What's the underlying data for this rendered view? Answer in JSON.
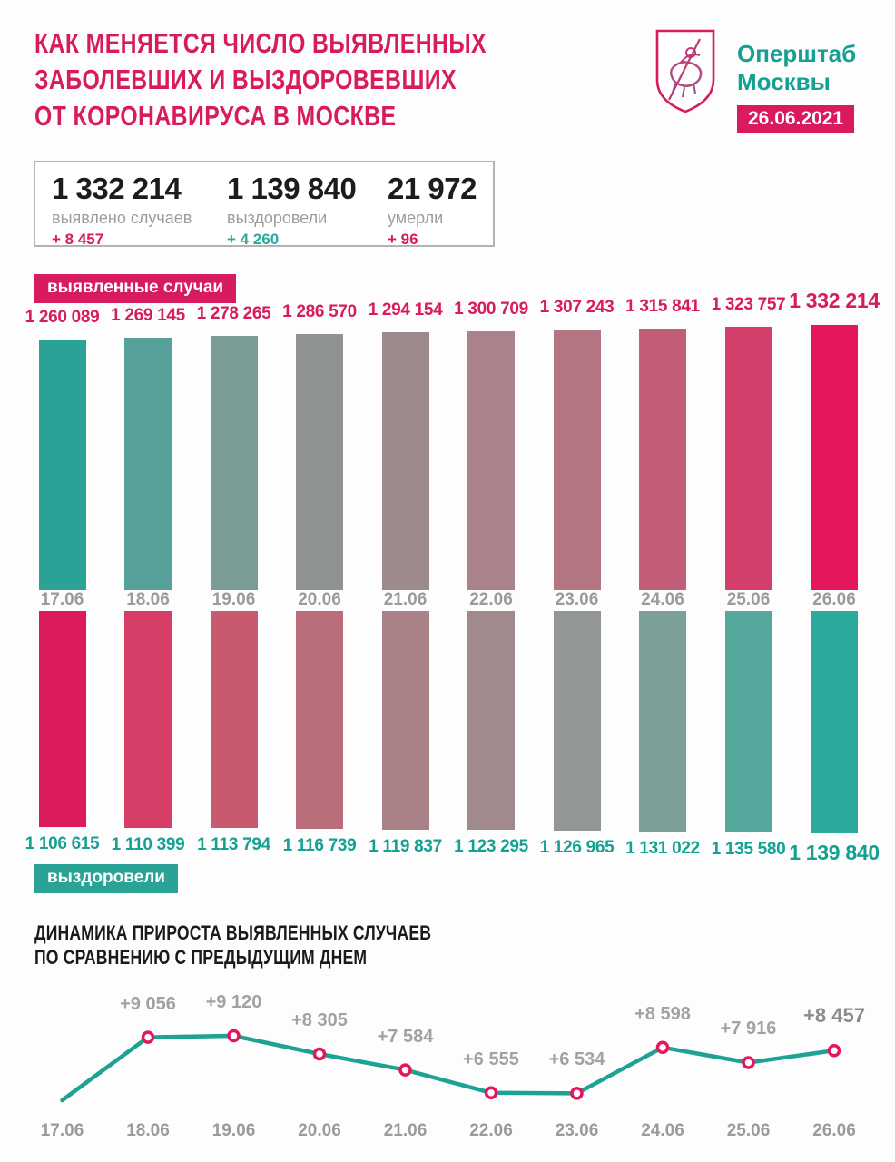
{
  "colors": {
    "pink": "#d81b5e",
    "pink_bright": "#e5175c",
    "teal": "#14a192",
    "teal_badge": "#2aa396",
    "line_teal": "#1ea294",
    "gray_text": "#9b9b9b",
    "dark": "#1c1c1c",
    "box_border": "#b3b3b3"
  },
  "icons": {
    "logo": "moscow-coat-of-arms"
  },
  "header": {
    "title_lines": [
      "КАК МЕНЯЕТСЯ ЧИСЛО ВЫЯВЛЕННЫХ",
      "ЗАБОЛЕВШИХ И ВЫЗДОРОВЕВШИХ",
      "ОТ КОРОНАВИРУСА В МОСКВЕ"
    ],
    "org_lines": [
      "Оперштаб",
      "Москвы"
    ],
    "date_badge": "26.06.2021"
  },
  "summary": {
    "items": [
      {
        "value": "1 332 214",
        "label": "выявлено случаев",
        "delta": "+ 8 457",
        "delta_color": "#d81b5e"
      },
      {
        "value": "1 139 840",
        "label": "выздоровели",
        "delta": "+ 4 260",
        "delta_color": "#2aa99b"
      },
      {
        "value": "21 972",
        "label": "умерли",
        "delta": "+ 96",
        "delta_color": "#d81b5e"
      }
    ]
  },
  "chart_data": [
    {
      "type": "bar",
      "name": "confirmed-cases",
      "badge": "выявленные случаи",
      "categories": [
        "17.06",
        "18.06",
        "19.06",
        "20.06",
        "21.06",
        "22.06",
        "23.06",
        "24.06",
        "25.06",
        "26.06"
      ],
      "values": [
        1260089,
        1269145,
        1278265,
        1286570,
        1294154,
        1300709,
        1307243,
        1315841,
        1323757,
        1332214
      ],
      "labels": [
        "1 260 089",
        "1 269 145",
        "1 278 265",
        "1 286 570",
        "1 294 154",
        "1 300 709",
        "1 307 243",
        "1 315 841",
        "1 323 757",
        "1 332 214"
      ],
      "bar_colors": [
        "#2aa296",
        "#55a098",
        "#7b9d95",
        "#8f9390",
        "#9d8b8c",
        "#a98389",
        "#b47583",
        "#c25e77",
        "#d33e6b",
        "#e5175c"
      ],
      "label_color": "#d81b5e",
      "ylim": [
        0,
        1332214
      ],
      "orientation": "up",
      "grid": false
    },
    {
      "type": "bar",
      "name": "recovered",
      "badge": "выздоровели",
      "categories": [
        "17.06",
        "18.06",
        "19.06",
        "20.06",
        "21.06",
        "22.06",
        "23.06",
        "24.06",
        "25.06",
        "26.06"
      ],
      "values": [
        1106615,
        1110399,
        1113794,
        1116739,
        1119837,
        1123295,
        1126965,
        1131022,
        1135580,
        1139840
      ],
      "labels": [
        "1 106 615",
        "1 110 399",
        "1 113 794",
        "1 116 739",
        "1 119 837",
        "1 123 295",
        "1 126 965",
        "1 131 022",
        "1 135 580",
        "1 139 840"
      ],
      "bar_colors": [
        "#dc1b5f",
        "#d63e67",
        "#c8596f",
        "#ba6e7a",
        "#ab8188",
        "#a18a8c",
        "#929794",
        "#7aa098",
        "#54a79b",
        "#2ba99b"
      ],
      "label_color": "#14a192",
      "ylim": [
        0,
        1139840
      ],
      "orientation": "down",
      "grid": false
    },
    {
      "type": "line",
      "name": "daily-increase",
      "title_lines": [
        "ДИНАМИКА ПРИРОСТА ВЫЯВЛЕННЫХ СЛУЧАЕВ",
        "ПО СРАВНЕНИЮ С ПРЕДЫДУЩИМ ДНЕМ"
      ],
      "categories": [
        "17.06",
        "18.06",
        "19.06",
        "20.06",
        "21.06",
        "22.06",
        "23.06",
        "24.06",
        "25.06",
        "26.06"
      ],
      "values": [
        6220,
        9056,
        9120,
        8305,
        7584,
        6555,
        6534,
        8598,
        7916,
        8457
      ],
      "labels": [
        "",
        "+9 056",
        "+9 120",
        "+8 305",
        "+7 584",
        "+6 555",
        "+6 534",
        "+8 598",
        "+7 916",
        "+8 457"
      ],
      "first_point_unlabeled": true,
      "ylim": [
        6000,
        9500
      ],
      "line_color": "#1ea294",
      "marker": "white-circle-pink-ring",
      "grid": false,
      "legend": "none"
    }
  ]
}
